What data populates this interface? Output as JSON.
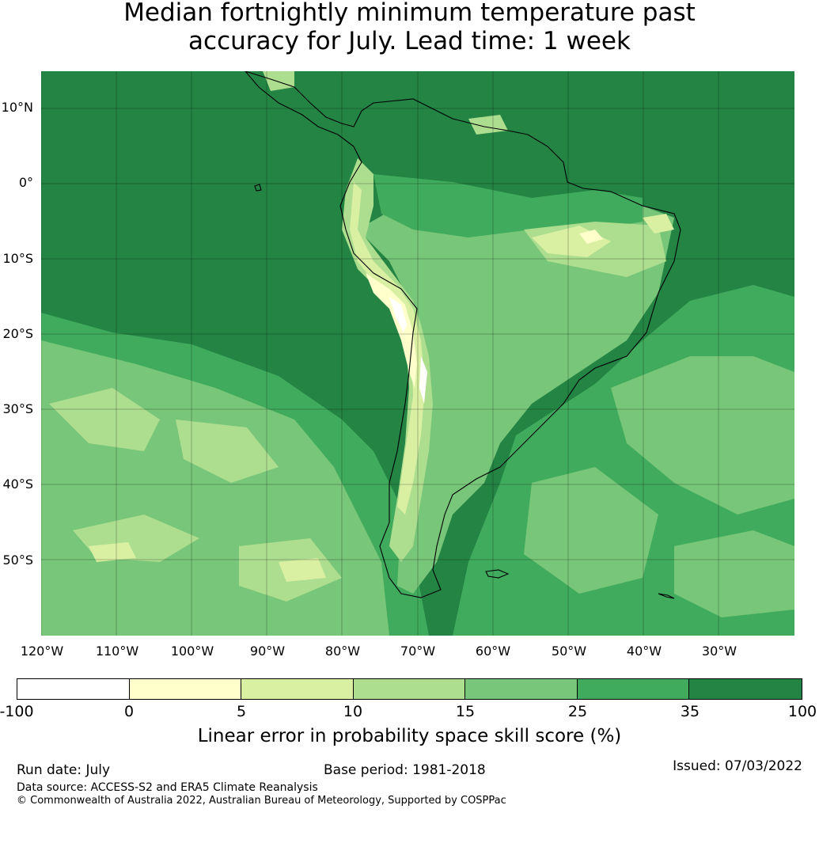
{
  "title": {
    "line1": "Median fortnightly minimum temperature past",
    "line2": "accuracy for July. Lead time: 1 week"
  },
  "map": {
    "lat_labels": [
      "10°N",
      "0°",
      "10°S",
      "20°S",
      "30°S",
      "40°S",
      "50°S"
    ],
    "lon_labels": [
      "120°W",
      "110°W",
      "100°W",
      "90°W",
      "80°W",
      "70°W",
      "60°W",
      "50°W",
      "40°W",
      "30°W"
    ]
  },
  "colorbar": {
    "label": "Linear error in probability space skill score (%)",
    "ticks": [
      "-100",
      "0",
      "5",
      "10",
      "15",
      "25",
      "35",
      "100"
    ],
    "colors": [
      "#ffffff",
      "#ffffcc",
      "#d9f0a3",
      "#addd8e",
      "#78c679",
      "#41ab5d",
      "#238443"
    ]
  },
  "footer": {
    "run_date": "Run date: July",
    "base_period": "Base period: 1981-2018",
    "issued": "Issued: 07/03/2022",
    "data_source": "Data source: ACCESS-S2 and ERA5 Climate Reanalysis",
    "copyright": "© Commonwealth of Australia 2022, Australian Bureau of Meteorology, Supported by COSPPac"
  }
}
